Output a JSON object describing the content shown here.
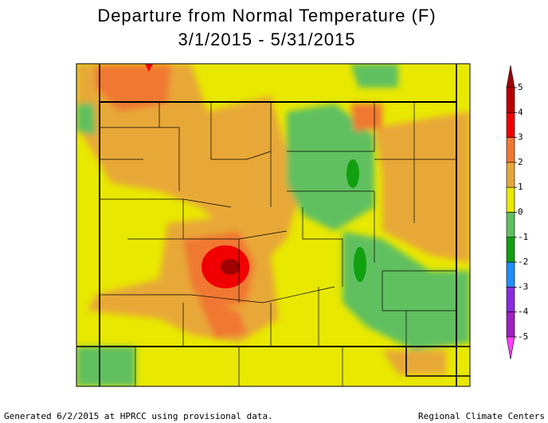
{
  "title": [
    "Departure from Normal Temperature (F)",
    "3/1/2015 - 5/31/2015"
  ],
  "legend": {
    "ticks": [
      5,
      4,
      3,
      2,
      1,
      0,
      -1,
      -2,
      -3,
      -4,
      -5
    ],
    "colors": [
      "#a00000",
      "#b80000",
      "#f00000",
      "#f07830",
      "#e8a838",
      "#e8e800",
      "#60c060",
      "#10a010",
      "#1e90ff",
      "#8a2be2",
      "#a020c0",
      "#ff40ff"
    ]
  },
  "footer": {
    "left": "Generated 6/2/2015 at HPRCC using provisional data.",
    "right": "Regional Climate Centers"
  }
}
